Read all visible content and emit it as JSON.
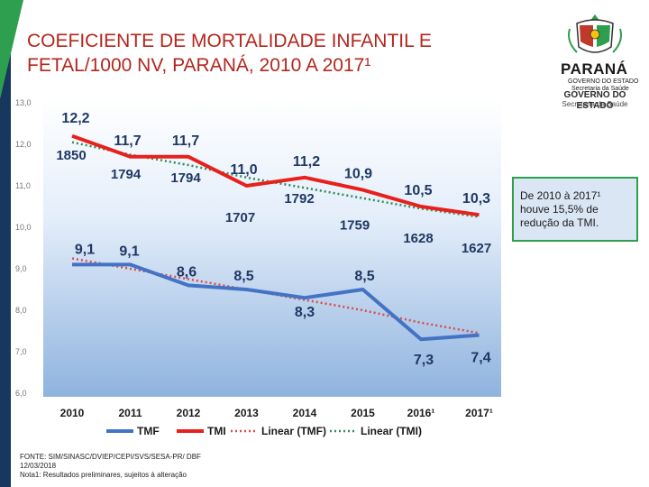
{
  "title_line1": "COEFICIENTE DE MORTALIDADE INFANTIL E",
  "title_line2": "FETAL/1000 NV, PARANÁ, 2010 A 2017¹",
  "logo": {
    "state": "PARANÁ",
    "subtitle": "GOVERNO DO ESTADO",
    "dept": "Secretaria da Saúde",
    "subtitle2": "GOVERNO DO ESTADO",
    "dept2": "Secretaria da Saúde"
  },
  "note": "De 2010 à 2017¹ houve 15,5% de redução da TMI.",
  "footer": {
    "source": "FONTE: SIM/SINASC/DVIEP/CEPI/SVS/SESA-PR/ DBF",
    "date": "12/03/2018",
    "note": "Nota1: Resultados preliminares, sujeitos à alteração"
  },
  "colors": {
    "tmf": "#4472c4",
    "tmi": "#e8201c",
    "linear_tmf": "#d94b4b",
    "linear_tmi": "#2e8b57",
    "label": "#1f3864"
  },
  "chart_data": {
    "type": "line",
    "categories": [
      "2010",
      "2011",
      "2012",
      "2013",
      "2014",
      "2015",
      "2016¹",
      "2017¹"
    ],
    "ylim": [
      6.0,
      13.0
    ],
    "yticks": [
      "6,0",
      "7,0",
      "8,0",
      "9,0",
      "10,0",
      "11,0",
      "12,0",
      "13,0"
    ],
    "series": [
      {
        "name": "TMF",
        "values": [
          9.1,
          9.1,
          8.6,
          8.5,
          8.3,
          8.5,
          7.3,
          7.4
        ],
        "labels": [
          "9,1",
          "9,1",
          "8,6",
          "8,5",
          "8,3",
          "8,5",
          "7,3",
          "7,4"
        ]
      },
      {
        "name": "TMI",
        "values": [
          12.2,
          11.7,
          11.7,
          11.0,
          11.2,
          10.9,
          10.5,
          10.3
        ],
        "labels": [
          "12,2",
          "11,7",
          "11,7",
          "11,0",
          "11,2",
          "10,9",
          "10,5",
          "10,3"
        ]
      }
    ],
    "deaths_labels": [
      "1850",
      "1794",
      "1794",
      "1707",
      "1792",
      "1759",
      "1628",
      "1627"
    ],
    "trend_series": [
      {
        "name": "Linear (TMF)",
        "values": [
          9.25,
          9.0,
          8.75,
          8.5,
          8.25,
          8.0,
          7.7,
          7.45
        ]
      },
      {
        "name": "Linear (TMI)",
        "values": [
          12.05,
          11.75,
          11.5,
          11.2,
          10.95,
          10.7,
          10.45,
          10.25
        ]
      }
    ],
    "legend": [
      "TMF",
      "TMI",
      "Linear (TMF)",
      "Linear (TMI)"
    ],
    "legend_position": "bottom",
    "grid": false
  }
}
